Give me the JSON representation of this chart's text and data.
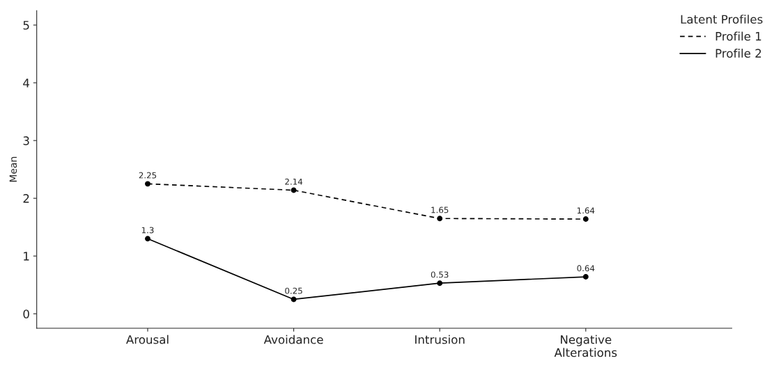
{
  "chart_data": {
    "type": "line",
    "ylabel": "Mean",
    "categories": [
      "Arousal",
      "Avoidance",
      "Intrusion",
      "Negative\nAlterations"
    ],
    "series": [
      {
        "name": "Profile 1",
        "color": "#000000",
        "line_style": "dashed",
        "values": [
          2.25,
          2.14,
          1.65,
          1.64
        ]
      },
      {
        "name": "Profile 2",
        "color": "#000000",
        "line_style": "solid",
        "values": [
          1.3,
          0.25,
          0.53,
          0.64
        ]
      }
    ],
    "ylim": [
      -0.25,
      5.25
    ],
    "yticks": [
      0,
      1,
      2,
      3,
      4,
      5
    ],
    "marker": "circle",
    "data_labels": true,
    "legend": "top right",
    "legend_title": "Latent Profiles",
    "grid": false
  }
}
